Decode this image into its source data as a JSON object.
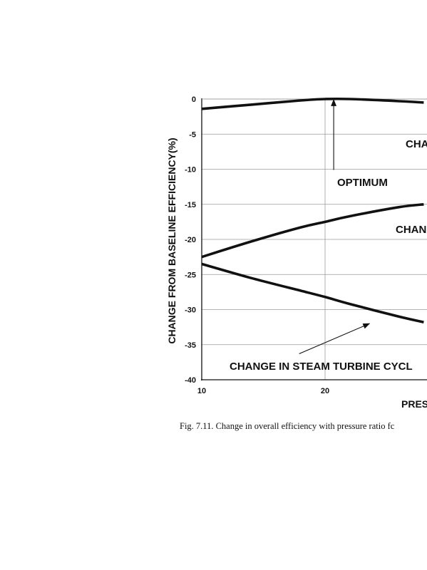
{
  "caption": "Fig. 7.11. Change in overall efficiency with pressure ratio fc",
  "colors": {
    "ink": "#111111",
    "grid": "#9a9a9a",
    "background": "#ffffff"
  },
  "chart_data": {
    "type": "line",
    "title": "",
    "xlabel": "PRES",
    "ylabel": "CHANGE FROM BASELINE EFFICIENCY(%)",
    "xlim": [
      10,
      28
    ],
    "ylim": [
      -40,
      0
    ],
    "x_ticks": [
      "10",
      "20"
    ],
    "y_ticks": [
      "0",
      "-5",
      "-10",
      "-15",
      "-20",
      "-25",
      "-30",
      "-35",
      "-40"
    ],
    "grid": true,
    "series": [
      {
        "x": [
          10,
          14,
          18,
          20,
          22,
          26,
          28
        ],
        "values": [
          -1.4,
          -0.8,
          -0.2,
          0,
          0,
          -0.3,
          -0.5
        ]
      },
      {
        "x": [
          10,
          14,
          18,
          20,
          22,
          26,
          28
        ],
        "values": [
          -22.5,
          -20.3,
          -18.3,
          -17.5,
          -16.7,
          -15.4,
          -15.0
        ]
      },
      {
        "x": [
          10,
          14,
          18,
          20,
          22,
          26,
          28
        ],
        "values": [
          -23.5,
          -25.5,
          -27.3,
          -28.2,
          -29.2,
          -31.0,
          -31.8
        ]
      }
    ],
    "annotations": [
      {
        "id": "optimum",
        "text": "OPTIMUM",
        "arrow_from": [
          20.7,
          -10.1
        ],
        "arrow_to": [
          20.7,
          -0.1
        ]
      },
      {
        "id": "change-steam",
        "text": "CHANGE IN STEAM TURBINE CYCL",
        "arrow_from": [
          17.9,
          -36.3
        ],
        "arrow_to": [
          23.6,
          -32.0
        ]
      },
      {
        "id": "change-top",
        "text": "CHA"
      },
      {
        "id": "change-mid",
        "text": "CHAN"
      }
    ]
  }
}
